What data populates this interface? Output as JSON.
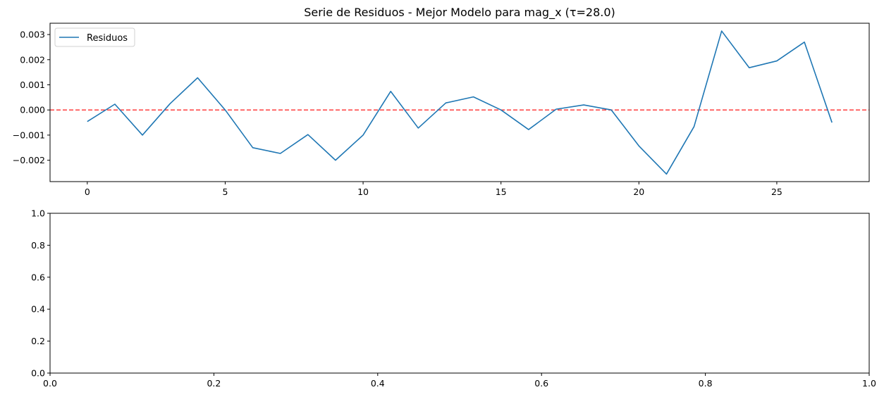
{
  "chart_data": [
    {
      "type": "line",
      "title": "Serie de Residuos - Mejor Modelo para mag_x (τ=28.0)",
      "xlabel": "",
      "ylabel": "",
      "xlim": [
        -1.35,
        28.35
      ],
      "ylim": [
        -0.00285,
        0.00345
      ],
      "x_ticks": [
        0,
        5,
        10,
        15,
        20,
        25
      ],
      "x_tick_labels": [
        "0",
        "5",
        "10",
        "15",
        "20",
        "25"
      ],
      "y_ticks": [
        -0.002,
        -0.001,
        0.0,
        0.001,
        0.002,
        0.003
      ],
      "y_tick_labels": [
        "−0.002",
        "−0.001",
        "0.000",
        "0.001",
        "0.002",
        "0.003"
      ],
      "grid": false,
      "legend": {
        "placement": "upper-left",
        "entries": [
          "Residuos"
        ]
      },
      "reference_line": {
        "y": 0.0,
        "style": "dashed",
        "color": "#ff0000"
      },
      "series": [
        {
          "name": "Residuos",
          "color": "#1f77b4",
          "x": [
            0,
            1,
            2,
            3,
            4,
            5,
            6,
            7,
            8,
            9,
            10,
            11,
            12,
            13,
            14,
            15,
            16,
            17,
            18,
            19,
            20,
            21,
            22,
            23,
            24,
            25,
            26,
            27
          ],
          "values": [
            -0.00046,
            0.00023,
            -0.001,
            0.00025,
            0.00128,
            0.0,
            -0.0015,
            -0.00173,
            -0.00098,
            -0.002,
            -0.001,
            0.00074,
            -0.00072,
            0.00028,
            0.00052,
            0.0,
            -0.00078,
            3e-05,
            0.0002,
            0.0,
            -0.00143,
            -0.00255,
            -0.00066,
            0.00314,
            0.00168,
            0.00195,
            0.0027,
            -0.0005
          ]
        }
      ]
    },
    {
      "type": "line",
      "title": "",
      "xlim": [
        0,
        1
      ],
      "ylim": [
        0,
        1
      ],
      "x_ticks": [
        0,
        0.2,
        0.4,
        0.6,
        0.8,
        1.0
      ],
      "x_tick_labels": [
        "0.0",
        "0.2",
        "0.4",
        "0.6",
        "0.8",
        "1.0"
      ],
      "y_ticks": [
        0,
        0.2,
        0.4,
        0.6,
        0.8,
        1.0
      ],
      "y_tick_labels": [
        "0.0",
        "0.2",
        "0.4",
        "0.6",
        "0.8",
        "1.0"
      ],
      "grid": false,
      "series": []
    }
  ]
}
